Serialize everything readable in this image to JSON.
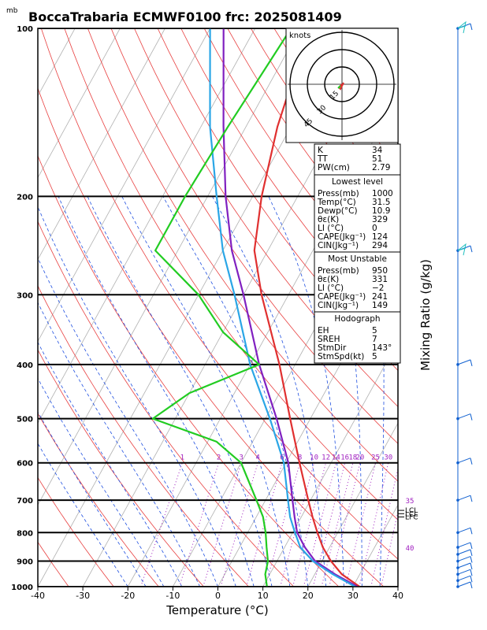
{
  "title": "BoccaTrabaria ECMWF0100 frc: 2025081409",
  "pressure_unit": "mb",
  "chart_data": {
    "type": "line",
    "xlabel": "Temperature (°C)",
    "ylabel": "Mixing Ratio (g/kg)",
    "xlim": [
      -40,
      40
    ],
    "ylim_mb": [
      1000,
      100
    ],
    "x_ticks": [
      "-40",
      "-30",
      "-20",
      "-10",
      "0",
      "10",
      "20",
      "30",
      "40"
    ],
    "p_ticks": [
      "100",
      "200",
      "300",
      "400",
      "500",
      "600",
      "700",
      "800",
      "900",
      "1000"
    ],
    "mixing_ratio_labels": [
      "1",
      "2",
      "3",
      "4",
      "6",
      "8",
      "10",
      "12",
      "14",
      "16",
      "18",
      "20",
      "25",
      "30",
      "35",
      "40"
    ],
    "series": [
      {
        "color": "#e03030",
        "points": [
          [
            1000,
            31.5
          ],
          [
            950,
            26
          ],
          [
            900,
            22
          ],
          [
            850,
            18.5
          ],
          [
            800,
            15.5
          ],
          [
            750,
            12.5
          ],
          [
            700,
            9.5
          ],
          [
            600,
            3.0
          ],
          [
            500,
            -4.5
          ],
          [
            400,
            -13.5
          ],
          [
            300,
            -26
          ],
          [
            250,
            -33
          ],
          [
            200,
            -38
          ],
          [
            150,
            -43
          ],
          [
            100,
            -48
          ]
        ]
      },
      {
        "color": "#8020c0",
        "points": [
          [
            1000,
            31.0
          ],
          [
            950,
            24.5
          ],
          [
            900,
            18.5
          ],
          [
            850,
            14.5
          ],
          [
            800,
            11.0
          ],
          [
            750,
            8.5
          ],
          [
            700,
            6.0
          ],
          [
            600,
            0.5
          ],
          [
            500,
            -7.5
          ],
          [
            400,
            -18
          ],
          [
            300,
            -30
          ],
          [
            250,
            -38
          ],
          [
            200,
            -46
          ],
          [
            150,
            -55
          ],
          [
            100,
            -67
          ]
        ]
      },
      {
        "color": "#2aa6e6",
        "points": [
          [
            1000,
            30.5
          ],
          [
            950,
            24.0
          ],
          [
            900,
            18.0
          ],
          [
            850,
            13.5
          ],
          [
            800,
            10.5
          ],
          [
            750,
            7.5
          ],
          [
            700,
            5.0
          ],
          [
            600,
            -0.5
          ],
          [
            500,
            -9
          ],
          [
            400,
            -20
          ],
          [
            300,
            -32
          ],
          [
            250,
            -40
          ],
          [
            200,
            -48
          ],
          [
            150,
            -58
          ],
          [
            100,
            -70
          ]
        ]
      },
      {
        "color": "#22cc22",
        "points": [
          [
            1000,
            10.9
          ],
          [
            950,
            9
          ],
          [
            900,
            8
          ],
          [
            850,
            6
          ],
          [
            800,
            4
          ],
          [
            750,
            1.5
          ],
          [
            700,
            -2
          ],
          [
            600,
            -10
          ],
          [
            550,
            -18
          ],
          [
            500,
            -35
          ],
          [
            450,
            -30
          ],
          [
            400,
            -18
          ],
          [
            350,
            -30
          ],
          [
            300,
            -40
          ],
          [
            250,
            -55
          ],
          [
            200,
            -55
          ],
          [
            150,
            -54
          ],
          [
            100,
            -52
          ]
        ]
      }
    ]
  },
  "hodograph": {
    "unit_label": "knots",
    "ring_labels": [
      "15",
      "30",
      "45"
    ]
  },
  "indices": {
    "top": [
      {
        "label": "K",
        "value": "34"
      },
      {
        "label": "TT",
        "value": "51"
      },
      {
        "label": "PW(cm)",
        "value": "2.79"
      }
    ],
    "lowest": {
      "title": "Lowest level",
      "rows": [
        {
          "label": "Press(mb)",
          "value": "1000"
        },
        {
          "label": "Temp(°C)",
          "value": "31.5"
        },
        {
          "label": "Dewp(°C)",
          "value": "10.9"
        },
        {
          "label": "θε(K)",
          "value": "329"
        },
        {
          "label": "LI (°C)",
          "value": "0"
        },
        {
          "label": "CAPE(Jkg⁻¹)",
          "value": "124"
        },
        {
          "label": "CIN(Jkg⁻¹)",
          "value": "294"
        }
      ]
    },
    "unstable": {
      "title": "Most Unstable",
      "rows": [
        {
          "label": "Press(mb)",
          "value": "950"
        },
        {
          "label": "θε(K)",
          "value": "331"
        },
        {
          "label": "LI (°C)",
          "value": "−2"
        },
        {
          "label": "CAPE(Jkg⁻¹)",
          "value": "241"
        },
        {
          "label": "CIN(Jkg⁻¹)",
          "value": "149"
        }
      ]
    },
    "hodo": {
      "title": "Hodograph",
      "rows": [
        {
          "label": "EH",
          "value": "5"
        },
        {
          "label": "SREH",
          "value": "7"
        },
        {
          "label": "StmDir",
          "value": "143°"
        },
        {
          "label": "StmSpd(kt)",
          "value": "5"
        }
      ]
    }
  },
  "levels": [
    "LCL",
    "LCL",
    "LFC"
  ]
}
